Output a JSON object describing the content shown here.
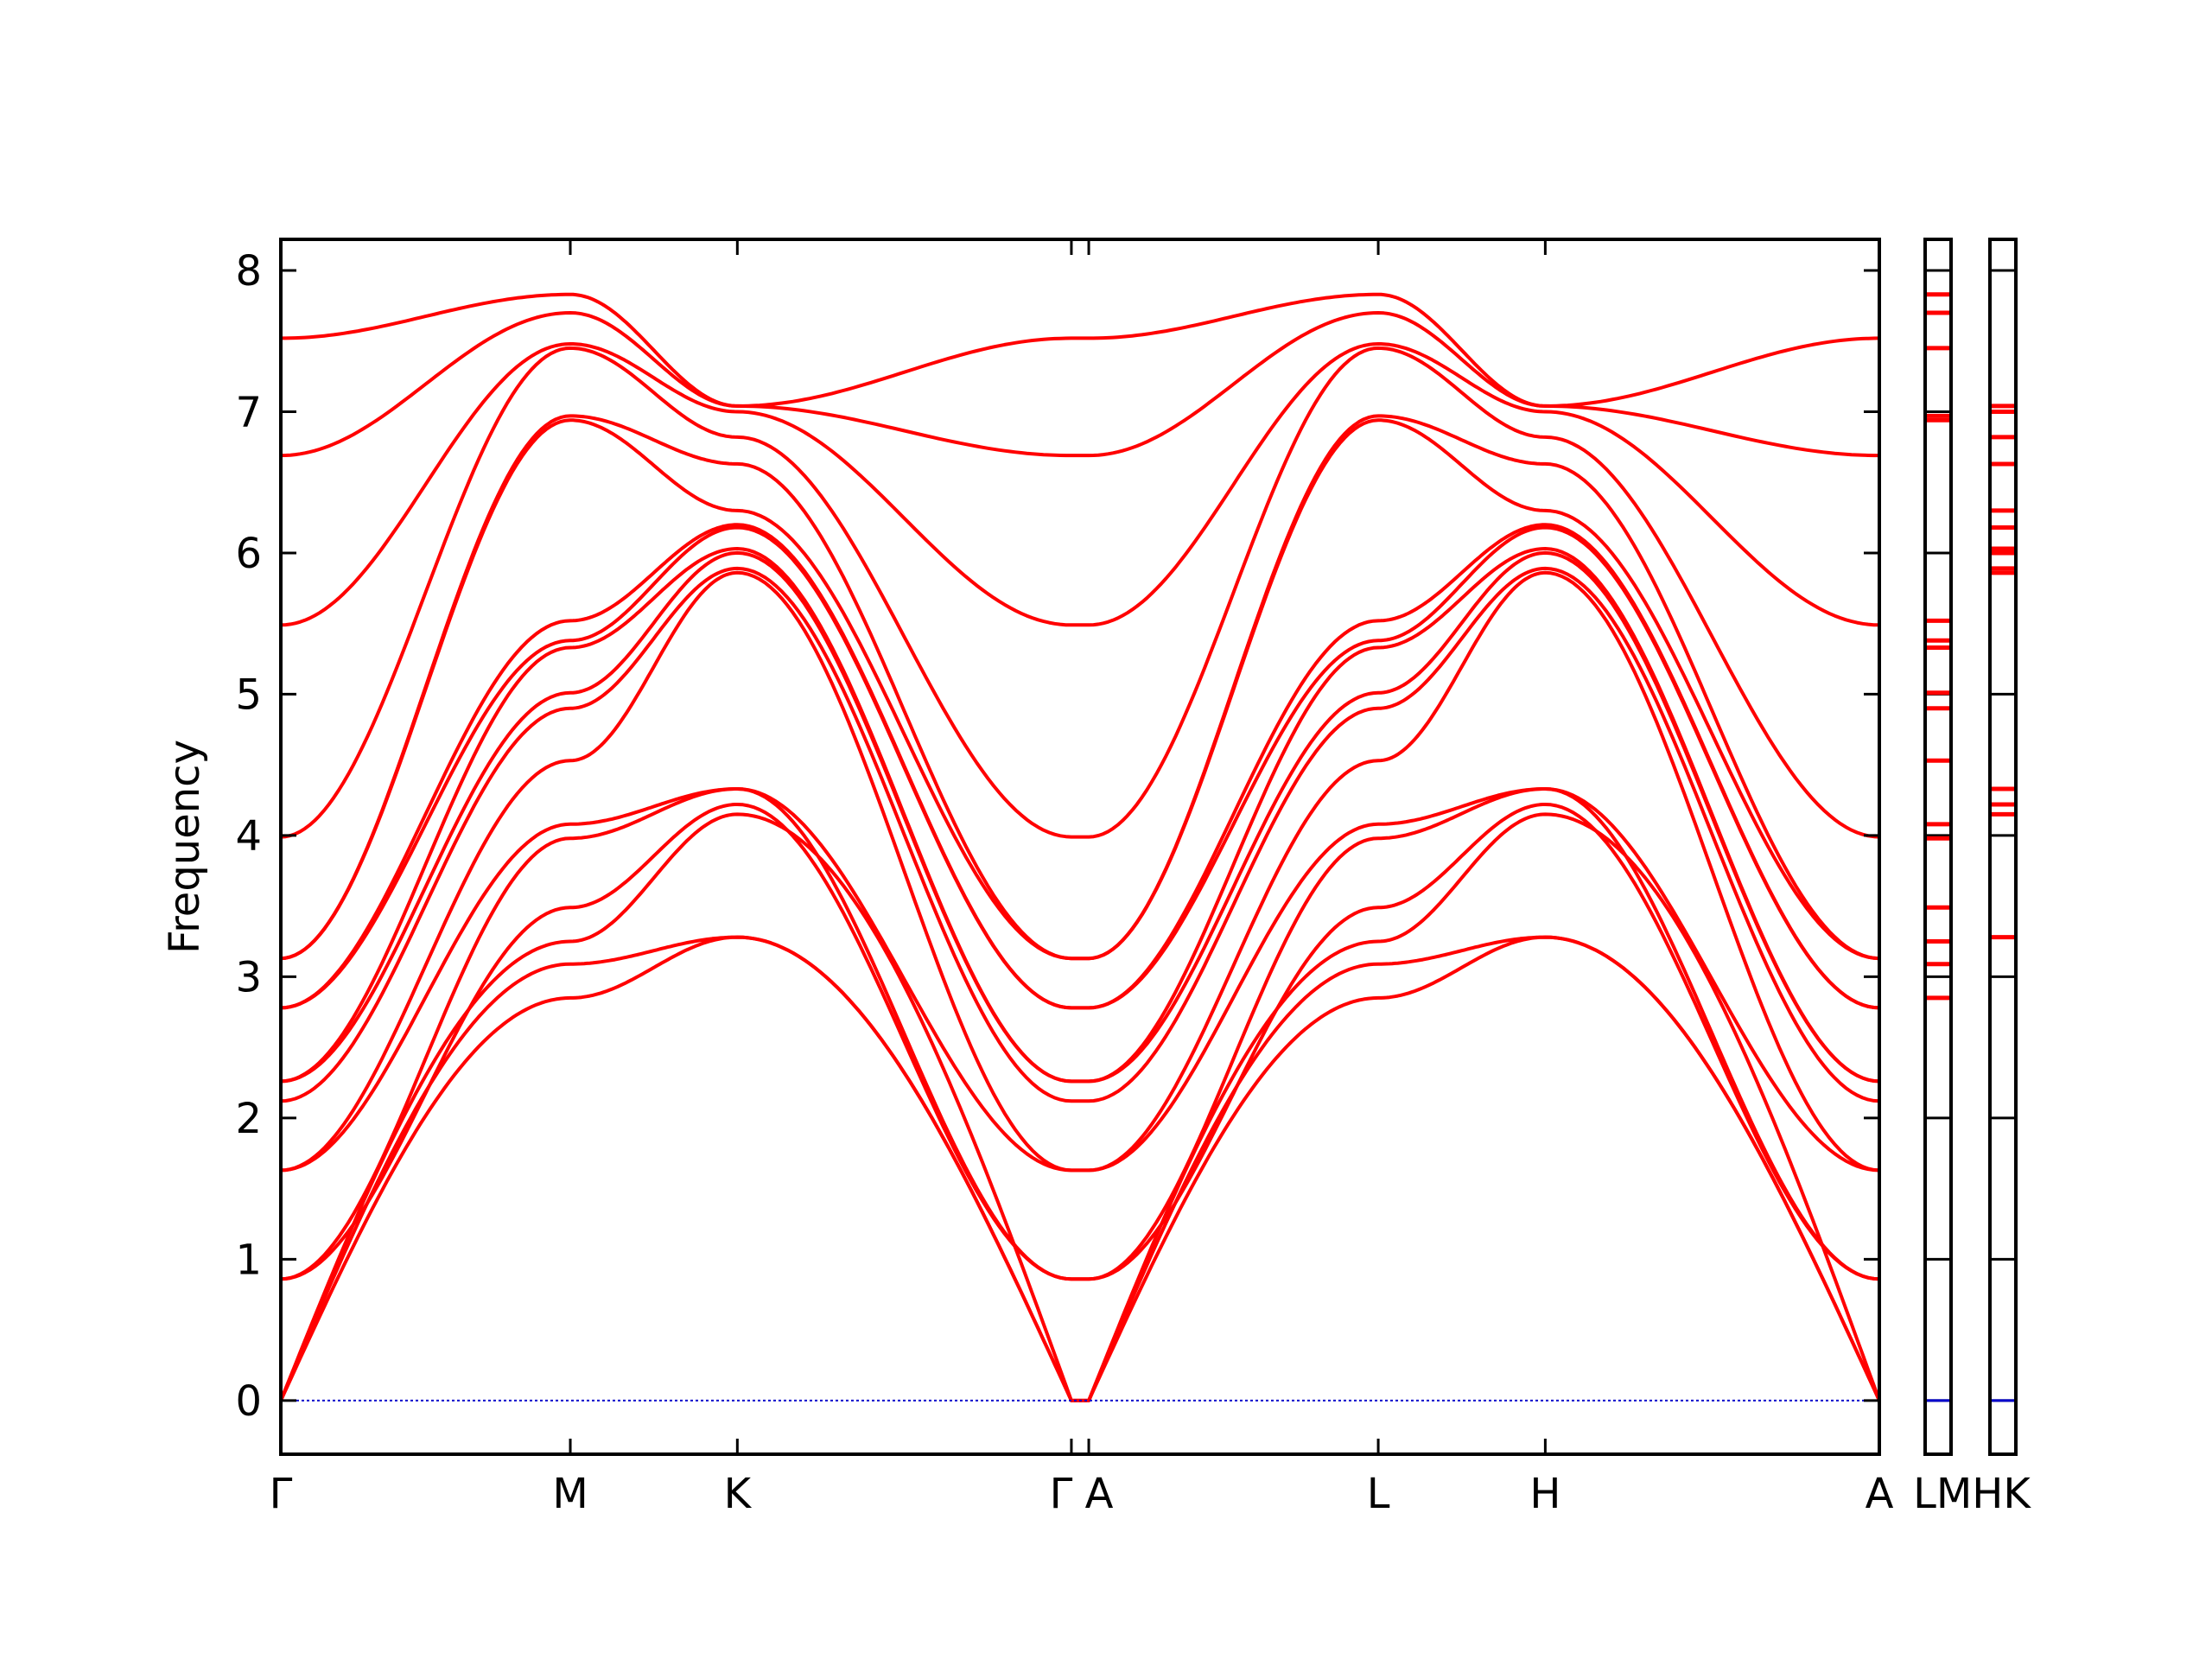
{
  "chart_data": {
    "type": "line",
    "ylabel": "Frequency",
    "ylim": [
      -0.38,
      8.22
    ],
    "yticks": [
      "0",
      "1",
      "2",
      "3",
      "4",
      "5",
      "6",
      "7",
      "8"
    ],
    "x_ticks": [
      {
        "label": "Γ",
        "x": 0.0
      },
      {
        "label": "M",
        "x": 1.0
      },
      {
        "label": "K",
        "x": 1.577
      },
      {
        "label": "Γ",
        "x": 2.731
      },
      {
        "label": "A",
        "x": 2.791
      },
      {
        "label": "L",
        "x": 3.791
      },
      {
        "label": "H",
        "x": 4.368
      },
      {
        "label": "A",
        "x": 5.522
      }
    ],
    "extra_labels": [
      "LMHK"
    ],
    "xlim": [
      0,
      5.522
    ],
    "zero_line": {
      "y": 0,
      "color": "#0000cc"
    },
    "line_color": "#ff0000",
    "gamma_freqs": [
      0.86,
      1.63,
      2.12,
      2.26,
      2.78,
      3.13,
      3.99,
      5.49,
      6.69,
      7.52
    ],
    "M_freqs": [
      2.85,
      3.09,
      3.25,
      3.49,
      3.98,
      4.08,
      4.53,
      4.9,
      5.01,
      5.33,
      5.38,
      5.52,
      6.94,
      6.97,
      7.45,
      7.48,
      7.7,
      7.83
    ],
    "K_freqs": [
      3.28,
      4.15,
      4.22,
      4.33,
      5.86,
      5.89,
      6.0,
      6.03,
      6.18,
      6.2,
      6.3,
      6.63,
      6.82,
      7.0,
      7.04
    ],
    "side_panel_1": {
      "label": "LM",
      "levels": [
        0,
        2.85,
        3.09,
        3.25,
        3.49,
        3.98,
        4.08,
        4.53,
        4.9,
        5.01,
        5.33,
        5.38,
        5.52,
        6.94,
        6.97,
        7.45,
        7.7,
        7.83
      ]
    },
    "side_panel_2": {
      "label": "HK",
      "levels": [
        0,
        3.28,
        4.15,
        4.22,
        4.33,
        5.86,
        5.89,
        6.0,
        6.03,
        6.18,
        6.3,
        6.63,
        6.82,
        7.0,
        7.04
      ]
    }
  }
}
